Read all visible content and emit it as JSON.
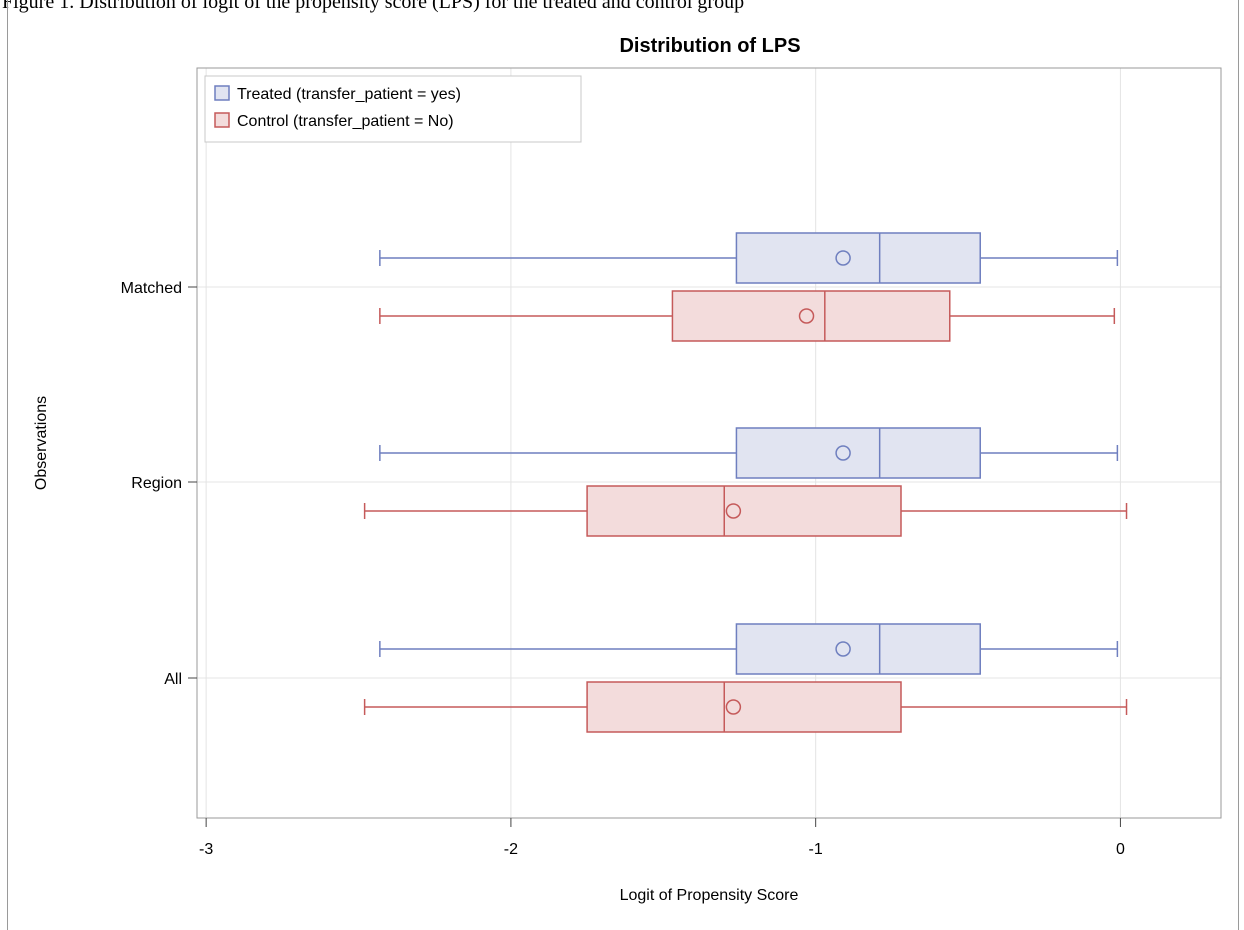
{
  "caption": "Figure 1. Distribution of logit of the propensity score (LPS) for the treated and control group",
  "chart_data": {
    "type": "boxplot",
    "title": "Distribution of LPS",
    "xlabel": "Logit of Propensity Score",
    "ylabel": "Observations",
    "xlim": [
      -3.03,
      0.33
    ],
    "xticks": [
      -3,
      -2,
      -1,
      0
    ],
    "grid": true,
    "legend_position": "top-left",
    "categories": [
      "Matched",
      "Region",
      "All"
    ],
    "series": [
      {
        "name": "Treated (transfer_patient = yes)",
        "color": "#6f7fbf",
        "fill": "#e1e4f1",
        "boxes": [
          {
            "category": "Matched",
            "min": -2.43,
            "q1": -1.26,
            "median": -0.79,
            "q3": -0.46,
            "max": -0.01,
            "mean": -0.91
          },
          {
            "category": "Region",
            "min": -2.43,
            "q1": -1.26,
            "median": -0.79,
            "q3": -0.46,
            "max": -0.01,
            "mean": -0.91
          },
          {
            "category": "All",
            "min": -2.43,
            "q1": -1.26,
            "median": -0.79,
            "q3": -0.46,
            "max": -0.01,
            "mean": -0.91
          }
        ]
      },
      {
        "name": "Control (transfer_patient = No)",
        "color": "#c55a5a",
        "fill": "#f3dcdc",
        "boxes": [
          {
            "category": "Matched",
            "min": -2.43,
            "q1": -1.47,
            "median": -0.97,
            "q3": -0.56,
            "max": -0.02,
            "mean": -1.03
          },
          {
            "category": "Region",
            "min": -2.48,
            "q1": -1.75,
            "median": -1.3,
            "q3": -0.72,
            "max": 0.02,
            "mean": -1.27
          },
          {
            "category": "All",
            "min": -2.48,
            "q1": -1.75,
            "median": -1.3,
            "q3": -0.72,
            "max": 0.02,
            "mean": -1.27
          }
        ]
      }
    ]
  }
}
